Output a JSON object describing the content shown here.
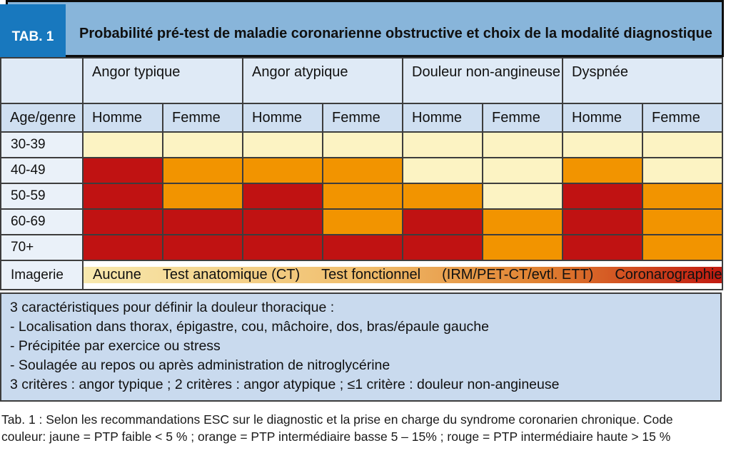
{
  "colors": {
    "yellow": "#fcf3c3",
    "orange": "#f29400",
    "red": "#c01212",
    "tab_box": "#1878be",
    "title_band": "#88b5da",
    "group_header_bg": "#dfeaf6",
    "sub_header_bg": "#cfdff1",
    "row_label_bg": "#eaf1f9",
    "notes_bg": "#c9daee",
    "grid_border": "#3d3d3d"
  },
  "header": {
    "tab_label": "TAB. 1",
    "title": "Probabilité pré-test de maladie coronarienne obstructive et choix de la modalité diagnostique"
  },
  "chart_data": {
    "type": "heatmap",
    "title": "Probabilité pré-test de maladie coronarienne obstructive et choix de la modalité diagnostique",
    "age_header": "Age/genre",
    "symptom_groups": [
      "Angor typique",
      "Angor atypique",
      "Douleur non-angineuse",
      "Dyspnée"
    ],
    "gender_headers": [
      "Homme",
      "Femme"
    ],
    "rows": [
      {
        "age": "30-39",
        "values": [
          "yellow",
          "yellow",
          "yellow",
          "yellow",
          "yellow",
          "yellow",
          "yellow",
          "yellow"
        ]
      },
      {
        "age": "40-49",
        "values": [
          "red",
          "orange",
          "orange",
          "orange",
          "yellow",
          "yellow",
          "orange",
          "yellow"
        ]
      },
      {
        "age": "50-59",
        "values": [
          "red",
          "orange",
          "red",
          "orange",
          "orange",
          "yellow",
          "red",
          "orange"
        ]
      },
      {
        "age": "60-69",
        "values": [
          "red",
          "red",
          "red",
          "orange",
          "red",
          "orange",
          "red",
          "orange"
        ]
      },
      {
        "age": "70+",
        "values": [
          "red",
          "red",
          "red",
          "red",
          "red",
          "orange",
          "red",
          "orange"
        ]
      }
    ],
    "legend": {
      "yellow": "PTP faible < 5 %",
      "orange": "PTP intermédiaire basse 5 – 15%",
      "red": "PTP intermédiaire haute > 15 %"
    },
    "imaging": {
      "label": "Imagerie",
      "options": [
        "Aucune",
        "Test anatomique (CT)",
        "Test fonctionnel",
        "(IRM/PET-CT/evtl. ETT)",
        "Coronarographie"
      ],
      "gradient": [
        "#f8e9ae",
        "#f0bc6a",
        "#e08030",
        "#c21a10"
      ]
    }
  },
  "notes": {
    "lines": [
      "3 caractéristiques pour définir la douleur thoracique :",
      "- Localisation dans thorax, épigastre, cou, mâchoire, dos, bras/épaule gauche",
      "- Précipitée par exercice ou stress",
      "- Soulagée au repos ou après administration de nitroglycérine",
      "3 critères : angor typique ; 2 critères : angor atypique ; ≤1 critère : douleur non-angineuse"
    ]
  },
  "caption": "Tab. 1 : Selon les recommandations ESC sur le diagnostic et la prise en charge du syndrome coronarien chronique. Code couleur: jaune = PTP faible < 5 % ;  orange = PTP intermédiaire basse 5 – 15% ; rouge = PTP intermédiaire haute > 15 %"
}
